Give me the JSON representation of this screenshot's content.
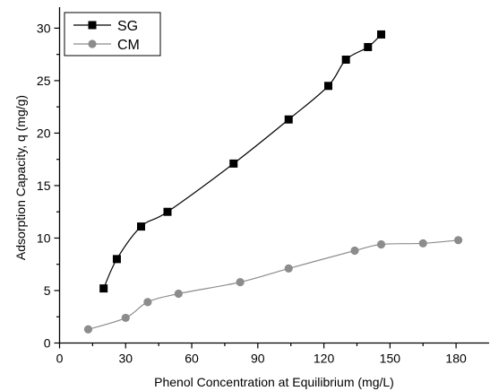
{
  "chart_data": {
    "type": "line",
    "title": "",
    "xlabel": "Phenol Concentration at Equilibrium (mg/L)",
    "ylabel": "Adsorption Capacity, q (mg/g)",
    "xlim": [
      0,
      195
    ],
    "ylim": [
      0,
      32
    ],
    "xticks": [
      0,
      30,
      60,
      90,
      120,
      150,
      180
    ],
    "xtick_labels": [
      "0",
      "30",
      "60",
      "90",
      "120",
      "150",
      "180"
    ],
    "yticks": [
      0,
      5,
      10,
      15,
      20,
      25,
      30
    ],
    "ytick_labels": [
      "0",
      "5",
      "10",
      "15",
      "20",
      "25",
      "30"
    ],
    "grid": false,
    "legend_position": "top-left",
    "series": [
      {
        "name": "SG",
        "color": "#000000",
        "marker": "square",
        "x": [
          20,
          26,
          37,
          49,
          79,
          104,
          122,
          130,
          140,
          146
        ],
        "y": [
          5.2,
          8.0,
          11.1,
          12.5,
          17.1,
          21.3,
          24.5,
          27.0,
          28.2,
          29.4
        ]
      },
      {
        "name": "CM",
        "color": "#8c8c8c",
        "marker": "circle",
        "x": [
          13,
          30,
          40,
          54,
          82,
          104,
          134,
          146,
          165,
          181
        ],
        "y": [
          1.3,
          2.4,
          3.9,
          4.7,
          5.8,
          7.1,
          8.8,
          9.4,
          9.5,
          9.8
        ]
      }
    ]
  }
}
